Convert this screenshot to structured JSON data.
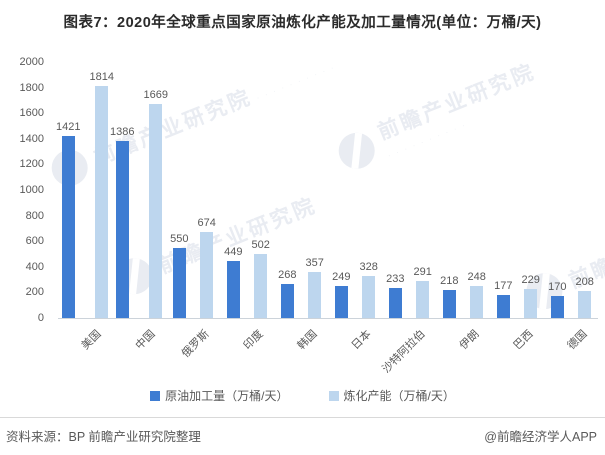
{
  "header": {
    "title": "图表7：2020年全球重点国家原油炼化产能及加工量情况(单位：万桶/天)"
  },
  "chart_data": {
    "type": "bar",
    "title": "图表7：2020年全球重点国家原油炼化产能及加工量情况(单位：万桶/天)",
    "categories": [
      "美国",
      "中国",
      "俄罗斯",
      "印度",
      "韩国",
      "日本",
      "沙特阿拉伯",
      "伊朗",
      "巴西",
      "德国"
    ],
    "series": [
      {
        "name": "原油加工量（万桶/天）",
        "color": "#3e7cd2",
        "values": [
          1421,
          1386,
          550,
          449,
          268,
          249,
          233,
          218,
          177,
          170
        ]
      },
      {
        "name": "炼化产能（万桶/天）",
        "color": "#bdd6ee",
        "values": [
          1814,
          1669,
          674,
          502,
          357,
          328,
          291,
          248,
          229,
          208
        ]
      }
    ],
    "ylim": [
      0,
      2000
    ],
    "yticks": [
      0,
      200,
      400,
      600,
      800,
      1000,
      1200,
      1400,
      1600,
      1800,
      2000
    ],
    "xlabel": "",
    "ylabel": "",
    "grid": false,
    "legend_position": "bottom"
  },
  "watermark": {
    "text": "前瞻产业研究院",
    "logo": "qianzhan-logo-icon"
  },
  "footer": {
    "source": "资料来源：BP 前瞻产业研究院整理",
    "credit": "@前瞻经济学人APP"
  }
}
